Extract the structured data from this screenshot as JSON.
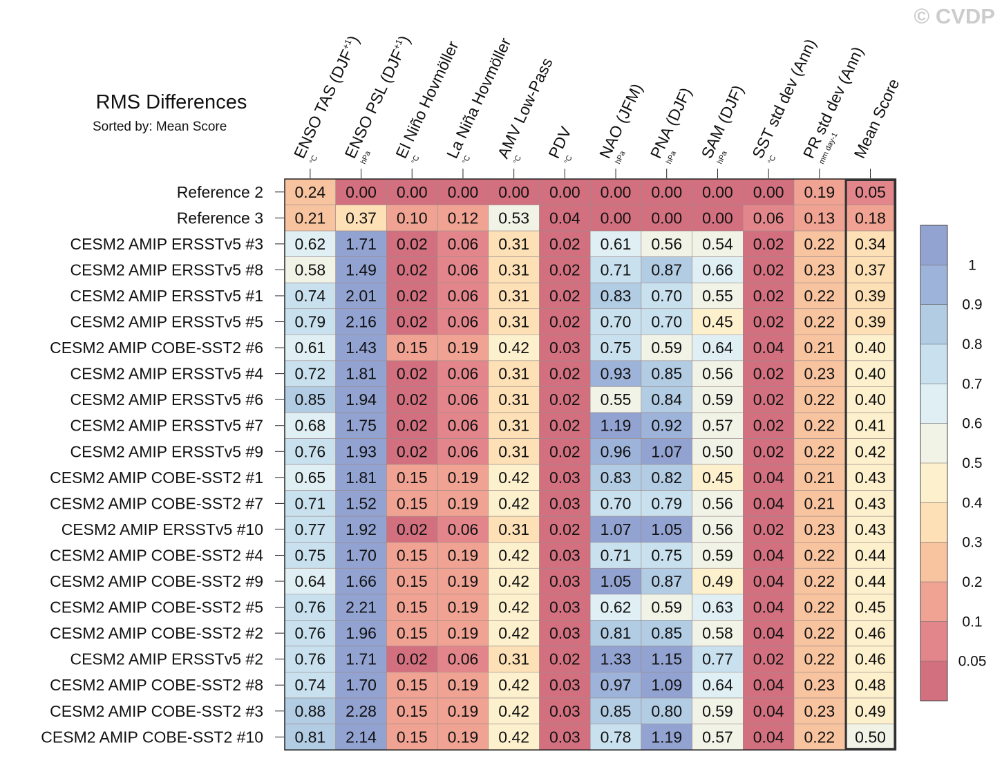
{
  "watermark": "© CVDP",
  "chart_data": {
    "type": "heatmap",
    "title": "RMS Differences",
    "subtitle": "Sorted by: Mean Score",
    "columns": [
      {
        "label": "ENSO TAS (DJF+1)",
        "main": "ENSO TAS (DJF",
        "sup": "+1",
        "close": ")",
        "unit": "°C"
      },
      {
        "label": "ENSO PSL (DJF+1)",
        "main": "ENSO PSL (DJF",
        "sup": "+1",
        "close": ")",
        "unit": "hPa"
      },
      {
        "label": "El Niño Hovmöller",
        "main": "El Niño Hovmöller",
        "sup": "",
        "close": "",
        "unit": "°C"
      },
      {
        "label": "La Niña Hovmöller",
        "main": "La Niña Hovmöller",
        "sup": "",
        "close": "",
        "unit": "°C"
      },
      {
        "label": "AMV Low-Pass",
        "main": "AMV Low-Pass",
        "sup": "",
        "close": "",
        "unit": "°C"
      },
      {
        "label": "PDV",
        "main": "PDV",
        "sup": "",
        "close": "",
        "unit": "°C"
      },
      {
        "label": "NAO (JFM)",
        "main": "NAO (JFM)",
        "sup": "",
        "close": "",
        "unit": "hPa"
      },
      {
        "label": "PNA (DJF)",
        "main": "PNA (DJF)",
        "sup": "",
        "close": "",
        "unit": "hPa"
      },
      {
        "label": "SAM (DJF)",
        "main": "SAM (DJF)",
        "sup": "",
        "close": "",
        "unit": "hPa"
      },
      {
        "label": "SST std dev (Ann)",
        "main": "SST std dev (Ann)",
        "sup": "",
        "close": "",
        "unit": "°C"
      },
      {
        "label": "PR std dev (Ann)",
        "main": "PR std dev (Ann)",
        "sup": "",
        "close": "",
        "unit": "mm day-1"
      },
      {
        "label": "Mean Score",
        "main": "Mean Score",
        "sup": "",
        "close": "",
        "unit": ""
      }
    ],
    "rows": [
      "Reference 2",
      "Reference 3",
      "CESM2 AMIP ERSSTv5 #3",
      "CESM2 AMIP ERSSTv5 #8",
      "CESM2 AMIP ERSSTv5 #1",
      "CESM2 AMIP ERSSTv5 #5",
      "CESM2 AMIP COBE-SST2 #6",
      "CESM2 AMIP ERSSTv5 #4",
      "CESM2 AMIP ERSSTv5 #6",
      "CESM2 AMIP ERSSTv5 #7",
      "CESM2 AMIP ERSSTv5 #9",
      "CESM2 AMIP COBE-SST2 #1",
      "CESM2 AMIP COBE-SST2 #7",
      "CESM2 AMIP ERSSTv5 #10",
      "CESM2 AMIP COBE-SST2 #4",
      "CESM2 AMIP COBE-SST2 #9",
      "CESM2 AMIP COBE-SST2 #5",
      "CESM2 AMIP COBE-SST2 #2",
      "CESM2 AMIP ERSSTv5 #2",
      "CESM2 AMIP COBE-SST2 #8",
      "CESM2 AMIP COBE-SST2 #3",
      "CESM2 AMIP COBE-SST2 #10"
    ],
    "values": [
      [
        "0.24",
        "0.00",
        "0.00",
        "0.00",
        "0.00",
        "0.00",
        "0.00",
        "0.00",
        "0.00",
        "0.00",
        "0.19",
        "0.05"
      ],
      [
        "0.21",
        "0.37",
        "0.10",
        "0.12",
        "0.53",
        "0.04",
        "0.00",
        "0.00",
        "0.00",
        "0.06",
        "0.13",
        "0.18"
      ],
      [
        "0.62",
        "1.71",
        "0.02",
        "0.06",
        "0.31",
        "0.02",
        "0.61",
        "0.56",
        "0.54",
        "0.02",
        "0.22",
        "0.34"
      ],
      [
        "0.58",
        "1.49",
        "0.02",
        "0.06",
        "0.31",
        "0.02",
        "0.71",
        "0.87",
        "0.66",
        "0.02",
        "0.23",
        "0.37"
      ],
      [
        "0.74",
        "2.01",
        "0.02",
        "0.06",
        "0.31",
        "0.02",
        "0.83",
        "0.70",
        "0.55",
        "0.02",
        "0.22",
        "0.39"
      ],
      [
        "0.79",
        "2.16",
        "0.02",
        "0.06",
        "0.31",
        "0.02",
        "0.70",
        "0.70",
        "0.45",
        "0.02",
        "0.22",
        "0.39"
      ],
      [
        "0.61",
        "1.43",
        "0.15",
        "0.19",
        "0.42",
        "0.03",
        "0.75",
        "0.59",
        "0.64",
        "0.04",
        "0.21",
        "0.40"
      ],
      [
        "0.72",
        "1.81",
        "0.02",
        "0.06",
        "0.31",
        "0.02",
        "0.93",
        "0.85",
        "0.56",
        "0.02",
        "0.23",
        "0.40"
      ],
      [
        "0.85",
        "1.94",
        "0.02",
        "0.06",
        "0.31",
        "0.02",
        "0.55",
        "0.84",
        "0.59",
        "0.02",
        "0.22",
        "0.40"
      ],
      [
        "0.68",
        "1.75",
        "0.02",
        "0.06",
        "0.31",
        "0.02",
        "1.19",
        "0.92",
        "0.57",
        "0.02",
        "0.22",
        "0.41"
      ],
      [
        "0.76",
        "1.93",
        "0.02",
        "0.06",
        "0.31",
        "0.02",
        "0.96",
        "1.07",
        "0.50",
        "0.02",
        "0.22",
        "0.42"
      ],
      [
        "0.65",
        "1.81",
        "0.15",
        "0.19",
        "0.42",
        "0.03",
        "0.83",
        "0.82",
        "0.45",
        "0.04",
        "0.21",
        "0.43"
      ],
      [
        "0.71",
        "1.52",
        "0.15",
        "0.19",
        "0.42",
        "0.03",
        "0.70",
        "0.79",
        "0.56",
        "0.04",
        "0.21",
        "0.43"
      ],
      [
        "0.77",
        "1.92",
        "0.02",
        "0.06",
        "0.31",
        "0.02",
        "1.07",
        "1.05",
        "0.56",
        "0.02",
        "0.23",
        "0.43"
      ],
      [
        "0.75",
        "1.70",
        "0.15",
        "0.19",
        "0.42",
        "0.03",
        "0.71",
        "0.75",
        "0.59",
        "0.04",
        "0.22",
        "0.44"
      ],
      [
        "0.64",
        "1.66",
        "0.15",
        "0.19",
        "0.42",
        "0.03",
        "1.05",
        "0.87",
        "0.49",
        "0.04",
        "0.22",
        "0.44"
      ],
      [
        "0.76",
        "2.21",
        "0.15",
        "0.19",
        "0.42",
        "0.03",
        "0.62",
        "0.59",
        "0.63",
        "0.04",
        "0.22",
        "0.45"
      ],
      [
        "0.76",
        "1.96",
        "0.15",
        "0.19",
        "0.42",
        "0.03",
        "0.81",
        "0.85",
        "0.58",
        "0.04",
        "0.22",
        "0.46"
      ],
      [
        "0.76",
        "1.71",
        "0.02",
        "0.06",
        "0.31",
        "0.02",
        "1.33",
        "1.15",
        "0.77",
        "0.02",
        "0.22",
        "0.46"
      ],
      [
        "0.74",
        "1.70",
        "0.15",
        "0.19",
        "0.42",
        "0.03",
        "0.97",
        "1.09",
        "0.64",
        "0.04",
        "0.23",
        "0.48"
      ],
      [
        "0.88",
        "2.28",
        "0.15",
        "0.19",
        "0.42",
        "0.03",
        "0.85",
        "0.80",
        "0.59",
        "0.04",
        "0.23",
        "0.49"
      ],
      [
        "0.81",
        "2.14",
        "0.15",
        "0.19",
        "0.42",
        "0.03",
        "0.78",
        "1.19",
        "0.57",
        "0.04",
        "0.22",
        "0.50"
      ]
    ],
    "colorbar": {
      "labels": [
        "1",
        "0.9",
        "0.8",
        "0.7",
        "0.6",
        "0.5",
        "0.4",
        "0.3",
        "0.2",
        "0.1",
        "0.05"
      ],
      "thresholds": [
        0.05,
        0.1,
        0.2,
        0.3,
        0.4,
        0.5,
        0.6,
        0.7,
        0.8,
        0.9,
        1.0
      ],
      "colors": [
        "#d2707f",
        "#e3868b",
        "#f0a393",
        "#f8c39f",
        "#fde0b5",
        "#fdf0cd",
        "#f1f3e7",
        "#e0eff4",
        "#c9e1ee",
        "#b2cce4",
        "#9eb3d9",
        "#92a2d1"
      ]
    },
    "highlight_column": "Mean Score"
  }
}
